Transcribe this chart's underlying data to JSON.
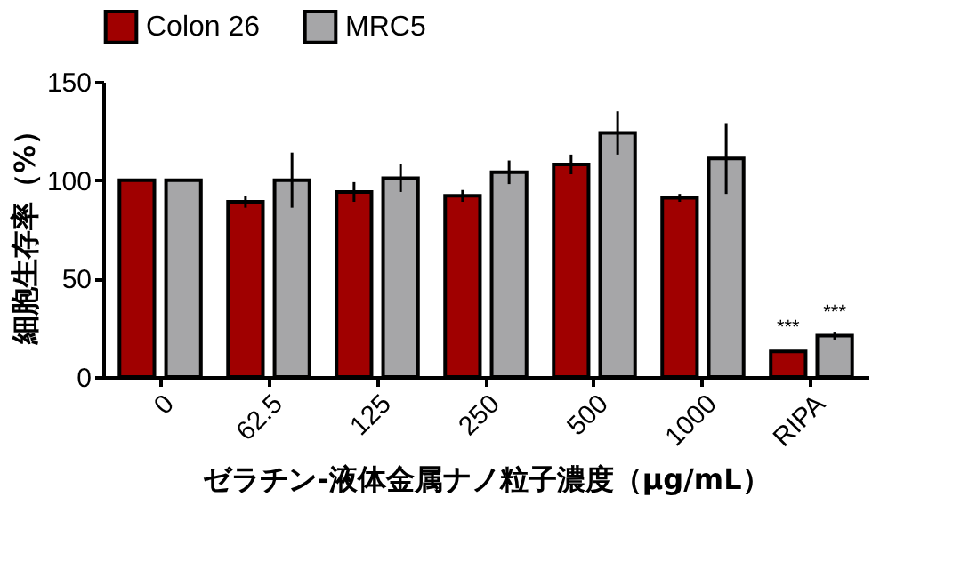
{
  "chart_data": {
    "type": "bar",
    "xlabel": "ゼラチン-液体金属ナノ粒子濃度（μg/mL）",
    "ylabel": "細胞生存率（%）",
    "categories": [
      "0",
      "62.5",
      "125",
      "250",
      "500",
      "1000",
      "RIPA"
    ],
    "series": [
      {
        "name": "Colon 26",
        "color": "#a00000",
        "values": [
          100,
          89,
          94,
          92,
          108,
          91,
          13
        ],
        "errors": [
          null,
          3,
          5,
          3,
          5,
          2,
          null
        ]
      },
      {
        "name": "MRC5",
        "color": "#a6a6a8",
        "values": [
          100,
          100,
          101,
          104,
          124,
          111,
          21
        ],
        "errors": [
          null,
          14,
          7,
          6,
          11,
          18,
          2
        ]
      }
    ],
    "ylim": [
      0,
      150
    ],
    "yticks": [
      0,
      50,
      100,
      150
    ],
    "legend": "top",
    "grid": false,
    "annotations": [
      {
        "text": "***",
        "x": "RIPA",
        "y": 13
      },
      {
        "text": "***",
        "x": "RIPA",
        "y": 21
      }
    ]
  }
}
